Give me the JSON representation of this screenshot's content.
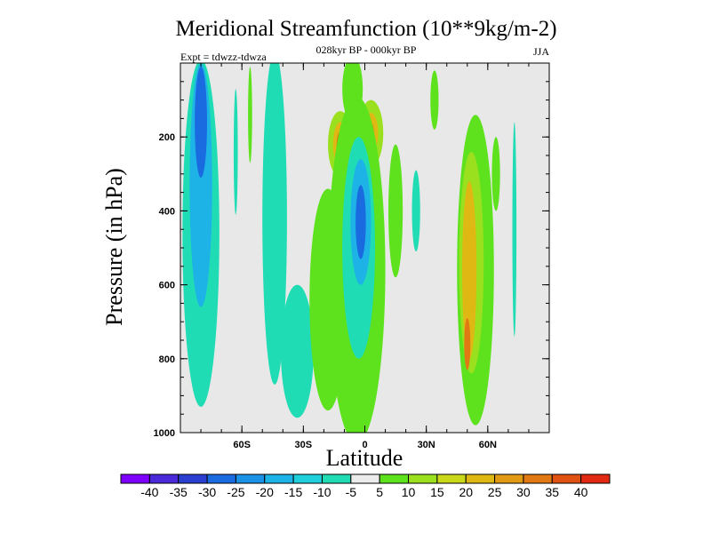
{
  "chart_data": {
    "type": "heatmap",
    "title": "Meridional Streamfunction (10**9kg/m-2)",
    "subtitle_center": "028kyr BP - 000kyr BP",
    "subtitle_left": "Expt = tdwzz-tdwza",
    "subtitle_right": "JJA",
    "xlabel": "Latitude",
    "ylabel": "Pressure (in hPa)",
    "xlim": [
      -90,
      90
    ],
    "ylim": [
      1000,
      0
    ],
    "y_reversed": true,
    "grid": false,
    "x_ticks": [
      {
        "value": -60,
        "label": "60S"
      },
      {
        "value": -30,
        "label": "30S"
      },
      {
        "value": 0,
        "label": "0"
      },
      {
        "value": 30,
        "label": "30N"
      },
      {
        "value": 60,
        "label": "60N"
      }
    ],
    "y_ticks": [
      {
        "value": 200,
        "label": "200"
      },
      {
        "value": 400,
        "label": "400"
      },
      {
        "value": 600,
        "label": "600"
      },
      {
        "value": 800,
        "label": "800"
      },
      {
        "value": 1000,
        "label": "1000"
      }
    ],
    "colorbar": {
      "labels": [
        "-40",
        "-35",
        "-30",
        "-25",
        "-20",
        "-15",
        "-10",
        "-5",
        "5",
        "10",
        "15",
        "20",
        "25",
        "30",
        "35",
        "40"
      ],
      "colors": [
        "#7f00ff",
        "#4a2ad8",
        "#2a3fd0",
        "#1a6ae0",
        "#1c92e6",
        "#1eb3e6",
        "#1fcfdc",
        "#1fdcb4",
        "#ebebeb",
        "#5ee21e",
        "#9ae01e",
        "#c9d91a",
        "#e0b814",
        "#e09a14",
        "#e07814",
        "#e05214",
        "#e22a12"
      ]
    },
    "background_color": "#e8e8e8",
    "features": [
      {
        "kind": "ellipse",
        "lat": -80,
        "p": 460,
        "dlat": 9,
        "dp": 470,
        "level": -10
      },
      {
        "kind": "ellipse",
        "lat": -80,
        "p": 330,
        "dlat": 5.5,
        "dp": 330,
        "level": -20
      },
      {
        "kind": "ellipse",
        "lat": -80,
        "p": 160,
        "dlat": 3,
        "dp": 150,
        "level": -30
      },
      {
        "kind": "ellipse",
        "lat": -56,
        "p": 140,
        "dlat": 1,
        "dp": 130,
        "level": 5
      },
      {
        "kind": "ellipse",
        "lat": -63,
        "p": 240,
        "dlat": 1,
        "dp": 170,
        "level": -10
      },
      {
        "kind": "ellipse",
        "lat": -44,
        "p": 420,
        "dlat": 6,
        "dp": 450,
        "level": -10
      },
      {
        "kind": "ellipse",
        "lat": -33,
        "p": 780,
        "dlat": 8,
        "dp": 180,
        "level": -10
      },
      {
        "kind": "ellipse",
        "lat": -18,
        "p": 640,
        "dlat": 9,
        "dp": 300,
        "level": 5
      },
      {
        "kind": "ellipse",
        "lat": -12,
        "p": 220,
        "dlat": 6,
        "dp": 90,
        "level": 10
      },
      {
        "kind": "ellipse",
        "lat": -12,
        "p": 220,
        "dlat": 3.5,
        "dp": 60,
        "level": 20
      },
      {
        "kind": "ellipse",
        "lat": -12,
        "p": 220,
        "dlat": 1.8,
        "dp": 35,
        "level": 30
      },
      {
        "kind": "ellipse",
        "lat": 3,
        "p": 190,
        "dlat": 6,
        "dp": 90,
        "level": 10
      },
      {
        "kind": "ellipse",
        "lat": 3,
        "p": 190,
        "dlat": 3.5,
        "dp": 55,
        "level": 20
      },
      {
        "kind": "ellipse",
        "lat": 3,
        "p": 190,
        "dlat": 1.5,
        "dp": 28,
        "level": 30
      },
      {
        "kind": "ellipse",
        "lat": -6,
        "p": 70,
        "dlat": 5,
        "dp": 90,
        "level": 5
      },
      {
        "kind": "ellipse",
        "lat": -4,
        "p": 560,
        "dlat": 14,
        "dp": 470,
        "level": 5
      },
      {
        "kind": "ellipse",
        "lat": -3,
        "p": 500,
        "dlat": 8,
        "dp": 300,
        "level": -10
      },
      {
        "kind": "ellipse",
        "lat": -2,
        "p": 430,
        "dlat": 5,
        "dp": 170,
        "level": -20
      },
      {
        "kind": "ellipse",
        "lat": -2,
        "p": 430,
        "dlat": 2.5,
        "dp": 100,
        "level": -30
      },
      {
        "kind": "ellipse",
        "lat": 15,
        "p": 400,
        "dlat": 3.5,
        "dp": 180,
        "level": 5
      },
      {
        "kind": "ellipse",
        "lat": 25,
        "p": 400,
        "dlat": 2,
        "dp": 110,
        "level": -10
      },
      {
        "kind": "ellipse",
        "lat": 34,
        "p": 100,
        "dlat": 2,
        "dp": 80,
        "level": 5
      },
      {
        "kind": "ellipse",
        "lat": 54,
        "p": 560,
        "dlat": 9,
        "dp": 420,
        "level": 5
      },
      {
        "kind": "ellipse",
        "lat": 52,
        "p": 540,
        "dlat": 6,
        "dp": 300,
        "level": 10
      },
      {
        "kind": "ellipse",
        "lat": 51,
        "p": 560,
        "dlat": 3.5,
        "dp": 240,
        "level": 20
      },
      {
        "kind": "ellipse",
        "lat": 50,
        "p": 760,
        "dlat": 1.5,
        "dp": 70,
        "level": 30
      },
      {
        "kind": "ellipse",
        "lat": 64,
        "p": 300,
        "dlat": 2,
        "dp": 100,
        "level": 5
      },
      {
        "kind": "ellipse",
        "lat": 73,
        "p": 450,
        "dlat": 1,
        "dp": 290,
        "level": -10
      }
    ]
  }
}
